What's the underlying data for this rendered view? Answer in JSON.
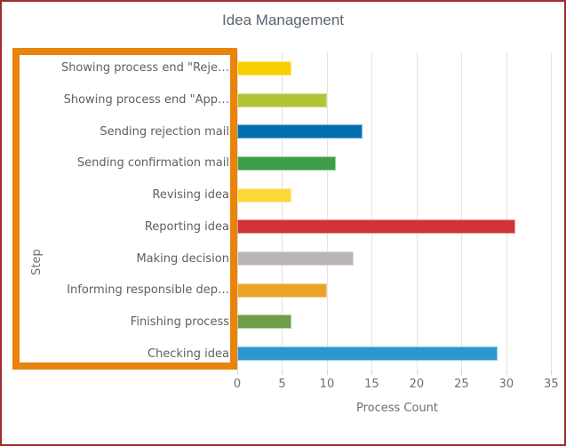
{
  "panel": {
    "border_color": "#A12C2C",
    "background": "#ffffff"
  },
  "annotation": {
    "name": "highlight-box-around-step-labels",
    "border_color": "#E8830B"
  },
  "chart_data": {
    "type": "bar",
    "orientation": "horizontal",
    "title": "Idea Management",
    "xlabel": "Process Count",
    "ylabel": "Step",
    "grid": "vertical",
    "legend": "none",
    "xlim": [
      0,
      35.66
    ],
    "xticks": [
      0,
      5,
      10,
      15,
      20,
      25,
      30,
      35
    ],
    "categories_top_to_bottom": [
      "Showing process end \"Reje…",
      "Showing process end \"App…",
      "Sending rejection mail",
      "Sending confirmation mail",
      "Revising idea",
      "Reporting idea",
      "Making decision",
      "Informing responsible dep…",
      "Finishing process",
      "Checking idea"
    ],
    "values": [
      6,
      10,
      14,
      11,
      6,
      31,
      13,
      10,
      6,
      29
    ],
    "bar_colors": [
      "#F7CE00",
      "#B2C337",
      "#0070B0",
      "#3F9E49",
      "#FCD936",
      "#D13238",
      "#BAB5B9",
      "#EAA324",
      "#6F9D48",
      "#2D96CB"
    ],
    "gridline_color": "#E2E2E2",
    "title_color": "#5A6470",
    "label_color": "#5F5F5F",
    "tick_label_color": "#6E6E6E"
  }
}
